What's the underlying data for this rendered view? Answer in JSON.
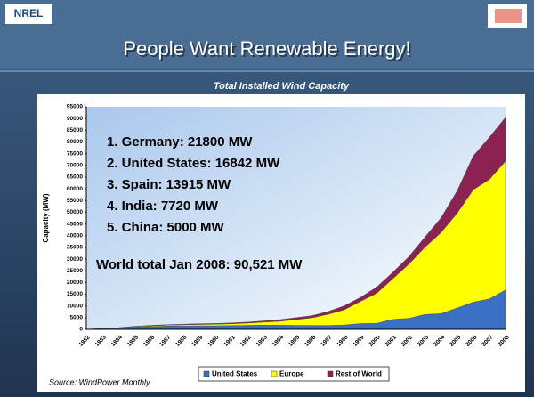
{
  "logo": "NREL",
  "slide_title": "People Want Renewable Energy!",
  "chart_data": {
    "type": "area",
    "stacked": true,
    "title": "Total Installed Wind Capacity",
    "y_label": "Capacity (MW)",
    "categories": [
      "1982",
      "1983",
      "1984",
      "1985",
      "1986",
      "1987",
      "1988",
      "1989",
      "1990",
      "1991",
      "1992",
      "1993",
      "1994",
      "1995",
      "1996",
      "1997",
      "1998",
      "1999",
      "2000",
      "2001",
      "2002",
      "2003",
      "2004",
      "2005",
      "2006",
      "2007",
      "2008"
    ],
    "series": [
      {
        "name": "United States",
        "color": "#3a6fc4",
        "values": [
          50,
          200,
          550,
          1000,
          1250,
          1400,
          1450,
          1500,
          1500,
          1600,
          1700,
          1800,
          1750,
          1700,
          1650,
          1650,
          1850,
          2450,
          2550,
          4250,
          4700,
          6350,
          6700,
          9100,
          11600,
          13000,
          16800
        ]
      },
      {
        "name": "Europe",
        "color": "#ffff00",
        "values": [
          0,
          50,
          100,
          200,
          300,
          400,
          500,
          600,
          700,
          800,
          1000,
          1300,
          1700,
          2500,
          3300,
          4800,
          6500,
          9500,
          12800,
          17300,
          23100,
          28700,
          34600,
          40500,
          48000,
          51000,
          55000
        ]
      },
      {
        "name": "Rest of World",
        "color": "#8b2252",
        "values": [
          0,
          0,
          50,
          100,
          150,
          200,
          250,
          300,
          300,
          350,
          400,
          500,
          700,
          800,
          900,
          1200,
          1700,
          1700,
          2650,
          2750,
          3200,
          4350,
          6300,
          9500,
          14400,
          18000,
          18700
        ]
      }
    ],
    "ylim": [
      0,
      95000
    ],
    "yticks": [
      0,
      5000,
      10000,
      15000,
      20000,
      25000,
      30000,
      35000,
      40000,
      45000,
      50000,
      55000,
      60000,
      65000,
      70000,
      75000,
      80000,
      85000,
      90000,
      95000
    ],
    "annotations": [
      "1. Germany: 21800 MW",
      "2. United States: 16842 MW",
      "3. Spain: 13915 MW",
      "4. India: 7720 MW",
      "5. China:  5000 MW",
      "World total Jan 2008: 90,521 MW"
    ],
    "source": "Source: WindPower Monthly",
    "legend": "bottom"
  }
}
